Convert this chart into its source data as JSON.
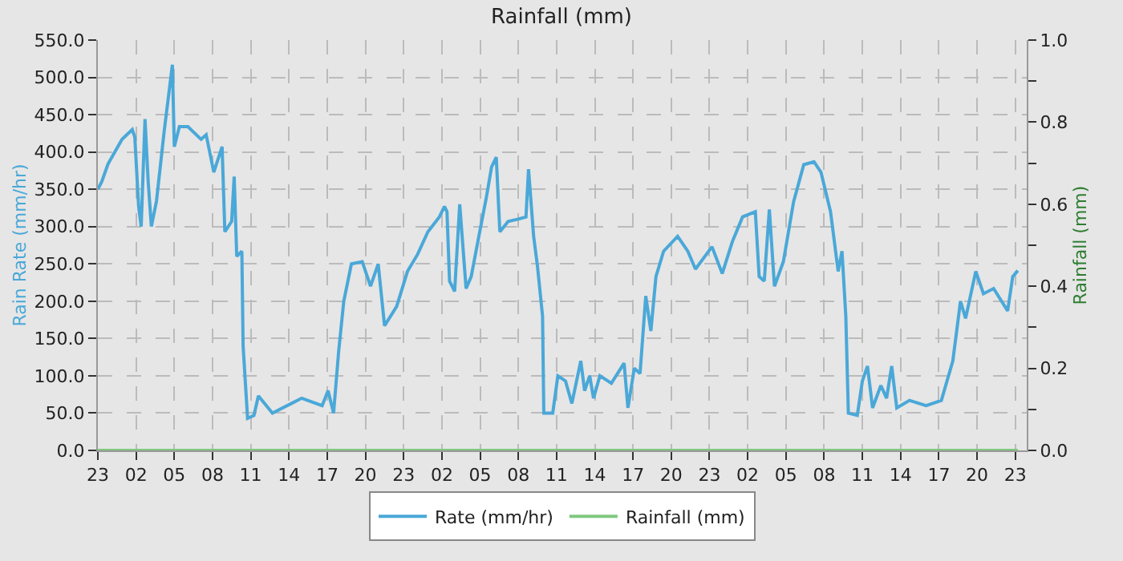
{
  "chart_data": {
    "type": "line",
    "title": "Rainfall (mm)",
    "ylabel": "Rain Rate (mm/hr)",
    "y2label": "Rainfall (mm)",
    "legend": "bottom",
    "grid": true,
    "line_style": "solid",
    "marker": "none",
    "xlim": [
      "--01-01T23:00",
      "--01-04T23:54"
    ],
    "xticks": [
      {
        "value": "--01-01T23:00",
        "label": "23"
      },
      {
        "value": "--01-02T02:00",
        "label": "02"
      },
      {
        "value": "--01-02T05:00",
        "label": "05"
      },
      {
        "value": "--01-02T08:00",
        "label": "08"
      },
      {
        "value": "--01-02T11:00",
        "label": "11"
      },
      {
        "value": "--01-02T14:00",
        "label": "14"
      },
      {
        "value": "--01-02T17:00",
        "label": "17"
      },
      {
        "value": "--01-02T20:00",
        "label": "20"
      },
      {
        "value": "--01-02T23:00",
        "label": "23"
      },
      {
        "value": "--01-03T02:00",
        "label": "02"
      },
      {
        "value": "--01-03T05:00",
        "label": "05"
      },
      {
        "value": "--01-03T08:00",
        "label": "08"
      },
      {
        "value": "--01-03T11:00",
        "label": "11"
      },
      {
        "value": "--01-03T14:00",
        "label": "14"
      },
      {
        "value": "--01-03T17:00",
        "label": "17"
      },
      {
        "value": "--01-03T20:00",
        "label": "20"
      },
      {
        "value": "--01-03T23:00",
        "label": "23"
      },
      {
        "value": "--01-04T02:00",
        "label": "02"
      },
      {
        "value": "--01-04T05:00",
        "label": "05"
      },
      {
        "value": "--01-04T08:00",
        "label": "08"
      },
      {
        "value": "--01-04T11:00",
        "label": "11"
      },
      {
        "value": "--01-04T14:00",
        "label": "14"
      },
      {
        "value": "--01-04T17:00",
        "label": "17"
      },
      {
        "value": "--01-04T20:00",
        "label": "20"
      },
      {
        "value": "--01-04T23:00",
        "label": "23"
      }
    ],
    "ylim": [
      0,
      550
    ],
    "yticks": [
      {
        "value": 0,
        "label": "0.0"
      },
      {
        "value": 50,
        "label": "50.0"
      },
      {
        "value": 100,
        "label": "100.0"
      },
      {
        "value": 150,
        "label": "150.0"
      },
      {
        "value": 200,
        "label": "200.0"
      },
      {
        "value": 250,
        "label": "250.0"
      },
      {
        "value": 300,
        "label": "300.0"
      },
      {
        "value": 350,
        "label": "350.0"
      },
      {
        "value": 400,
        "label": "400.0"
      },
      {
        "value": 450,
        "label": "450.0"
      },
      {
        "value": 500,
        "label": "500.0"
      },
      {
        "value": 550,
        "label": "550.0"
      }
    ],
    "y2lim": [
      0,
      1.0
    ],
    "y2ticks": [
      {
        "value": 0,
        "label": "0.0"
      },
      {
        "value": 0.1,
        "label": null
      },
      {
        "value": 0.2,
        "label": "0.2"
      },
      {
        "value": 0.3,
        "label": null
      },
      {
        "value": 0.4,
        "label": "0.4"
      },
      {
        "value": 0.5,
        "label": null
      },
      {
        "value": 0.6,
        "label": "0.6"
      },
      {
        "value": 0.7,
        "label": null
      },
      {
        "value": 0.8,
        "label": "0.8"
      },
      {
        "value": 0.9,
        "label": null
      },
      {
        "value": 1.0,
        "label": "1.0"
      }
    ],
    "series": [
      {
        "name": "Rate (mm/hr)",
        "color": "#4aa8d8",
        "x": [
          "--01-01T23:00",
          "--01-01T23:18",
          "--01-01T23:48",
          "--01-02T00:54",
          "--01-02T01:42",
          "--01-02T01:54",
          "--01-02T02:12",
          "--01-02T02:24",
          "--01-02T02:42",
          "--01-02T02:57",
          "--01-02T03:12",
          "--01-02T03:36",
          "--01-02T04:12",
          "--01-02T04:51",
          "--01-02T05:00",
          "--01-02T05:24",
          "--01-02T06:04",
          "--01-02T07:06",
          "--01-02T07:30",
          "--01-02T08:06",
          "--01-02T08:45",
          "--01-02T08:58",
          "--01-02T09:30",
          "--01-02T09:42",
          "--01-02T09:54",
          "--01-02T10:18",
          "--01-02T10:24",
          "--01-02T10:45",
          "--01-02T11:15",
          "--01-02T11:36",
          "--01-02T12:42",
          "--01-02T14:12",
          "--01-02T15:00",
          "--01-02T16:36",
          "--01-02T17:04",
          "--01-02T17:30",
          "--01-02T17:54",
          "--01-02T18:18",
          "--01-02T18:54",
          "--01-02T19:45",
          "--01-02T20:24",
          "--01-02T21:00",
          "--01-02T21:30",
          "--01-02T22:27",
          "--01-02T23:18",
          "--01-03T00:06",
          "--01-03T00:54",
          "--01-03T01:48",
          "--01-03T02:12",
          "--01-03T02:24",
          "--01-03T02:36",
          "--01-03T03:00",
          "--01-03T03:24",
          "--01-03T03:54",
          "--01-03T04:18",
          "--01-03T04:54",
          "--01-03T05:30",
          "--01-03T05:54",
          "--01-03T06:16",
          "--01-03T06:33",
          "--01-03T07:12",
          "--01-03T08:00",
          "--01-03T08:36",
          "--01-03T08:48",
          "--01-03T09:12",
          "--01-03T09:30",
          "--01-03T09:54",
          "--01-03T10:00",
          "--01-03T10:42",
          "--01-03T11:06",
          "--01-03T11:42",
          "--01-03T12:12",
          "--01-03T12:54",
          "--01-03T13:12",
          "--01-03T13:36",
          "--01-03T13:54",
          "--01-03T14:24",
          "--01-03T15:18",
          "--01-03T16:18",
          "--01-03T16:36",
          "--01-03T17:06",
          "--01-03T17:33",
          "--01-03T18:00",
          "--01-03T18:24",
          "--01-03T18:48",
          "--01-03T19:24",
          "--01-03T20:30",
          "--01-03T21:18",
          "--01-03T21:54",
          "--01-03T23:12",
          "--01-04T00:00",
          "--01-04T00:48",
          "--01-04T01:36",
          "--01-04T02:36",
          "--01-04T02:54",
          "--01-04T03:18",
          "--01-04T03:42",
          "--01-04T04:06",
          "--01-04T04:48",
          "--01-04T05:36",
          "--01-04T06:24",
          "--01-04T07:12",
          "--01-04T07:45",
          "--01-04T08:30",
          "--01-04T09:06",
          "--01-04T09:24",
          "--01-04T09:42",
          "--01-04T09:54",
          "--01-04T10:36",
          "--01-04T11:00",
          "--01-04T11:24",
          "--01-04T11:48",
          "--01-04T12:27",
          "--01-04T12:54",
          "--01-04T13:18",
          "--01-04T13:42",
          "--01-04T14:42",
          "--01-04T16:00",
          "--01-04T17:12",
          "--01-04T18:06",
          "--01-04T18:42",
          "--01-04T19:06",
          "--01-04T19:54",
          "--01-04T20:30",
          "--01-04T21:18",
          "--01-04T22:24",
          "--01-04T22:48",
          "--01-04T23:12"
        ],
        "values": [
          350,
          360,
          384,
          417,
          430,
          420,
          327,
          300,
          444,
          360,
          300,
          334,
          427,
          517,
          407,
          434,
          434,
          417,
          423,
          373,
          407,
          293,
          307,
          367,
          260,
          267,
          140,
          43,
          47,
          73,
          50,
          63,
          70,
          60,
          80,
          50,
          133,
          200,
          250,
          253,
          220,
          250,
          167,
          193,
          240,
          263,
          293,
          313,
          327,
          320,
          227,
          213,
          330,
          217,
          233,
          287,
          340,
          380,
          393,
          293,
          307,
          310,
          313,
          377,
          287,
          247,
          180,
          50,
          50,
          100,
          93,
          63,
          120,
          80,
          100,
          70,
          100,
          90,
          117,
          57,
          110,
          103,
          207,
          160,
          233,
          267,
          287,
          267,
          243,
          273,
          237,
          280,
          313,
          320,
          233,
          227,
          323,
          220,
          253,
          333,
          383,
          387,
          373,
          320,
          240,
          267,
          180,
          50,
          47,
          93,
          113,
          57,
          87,
          70,
          113,
          57,
          67,
          60,
          67,
          120,
          200,
          177,
          240,
          210,
          217,
          187,
          233,
          241
        ]
      },
      {
        "name": "Rainfall (mm)",
        "color": "#80c880",
        "type": "line",
        "axis": "y2",
        "x": [
          "--01-01T23:00",
          "--01-04T23:12"
        ],
        "values": [
          0,
          0
        ]
      }
    ]
  }
}
